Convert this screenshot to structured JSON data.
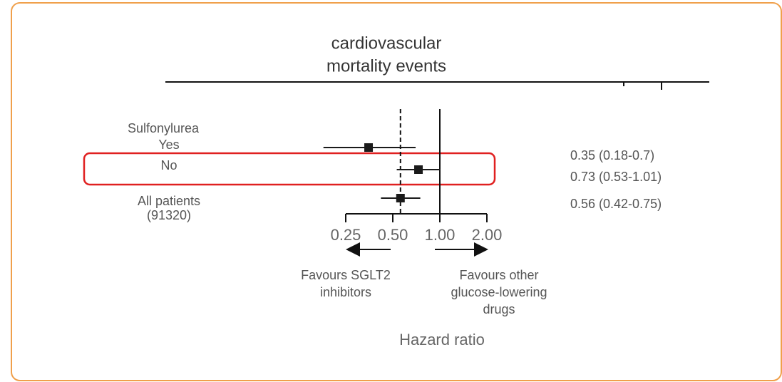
{
  "chart_data": {
    "type": "forest",
    "title": [
      "cardiovascular",
      "mortality events"
    ],
    "group": "Sulfonylurea",
    "categories": [
      [
        "Yes"
      ],
      [
        "No"
      ],
      [
        "All patients",
        "(91320)"
      ]
    ],
    "values": [
      0.35,
      0.73,
      0.56
    ],
    "lower": [
      0.18,
      0.53,
      0.42
    ],
    "upper": [
      0.7,
      1.01,
      0.75
    ],
    "value_labels": [
      "0.35 (0.18-0.7)",
      "0.73 (0.53-1.01)",
      "0.56 (0.42-0.75)"
    ],
    "xscale": "log",
    "xlim": [
      0.25,
      2
    ],
    "xticks": [
      0.25,
      {
        "value": 0.5,
        "label": "0.50"
      },
      {
        "value": 1,
        "label": "1.00"
      },
      {
        "value": 2,
        "label": "2.00"
      }
    ],
    "reference_line": 1,
    "left_note": [
      "Favours SGLT2",
      "inhibitors"
    ],
    "right_note": [
      "Favours other",
      "glucose-lowering",
      "drugs"
    ],
    "xlabel": "Hazard ratio",
    "color": "#1a1a1a"
  }
}
